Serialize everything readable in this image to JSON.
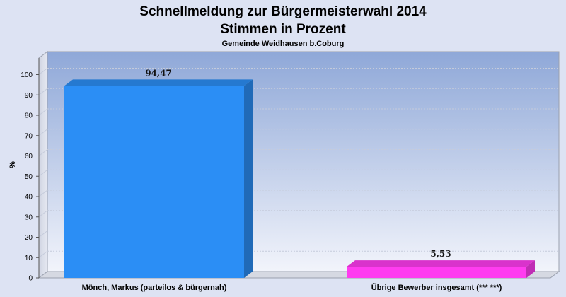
{
  "chart_data": {
    "type": "bar",
    "title": "Schnellmeldung zur Bürgermeisterwahl 2014",
    "title2": "Stimmen in Prozent",
    "subtitle": "Gemeinde Weidhausen b.Coburg",
    "ylabel": "%",
    "xlabel": "",
    "ylim": [
      0,
      105
    ],
    "yticks": [
      0,
      10,
      20,
      30,
      40,
      50,
      60,
      70,
      80,
      90,
      100
    ],
    "categories": [
      "Mönch, Markus (parteilos & bürgernah)",
      "Übrige Bewerber insgesamt (***  ***)"
    ],
    "values": [
      94.47,
      5.53
    ],
    "value_labels": [
      "94,47",
      "5,53"
    ],
    "colors": [
      "#2b8ef5",
      "#ff3cf0"
    ],
    "grid": true,
    "legend": "none"
  }
}
